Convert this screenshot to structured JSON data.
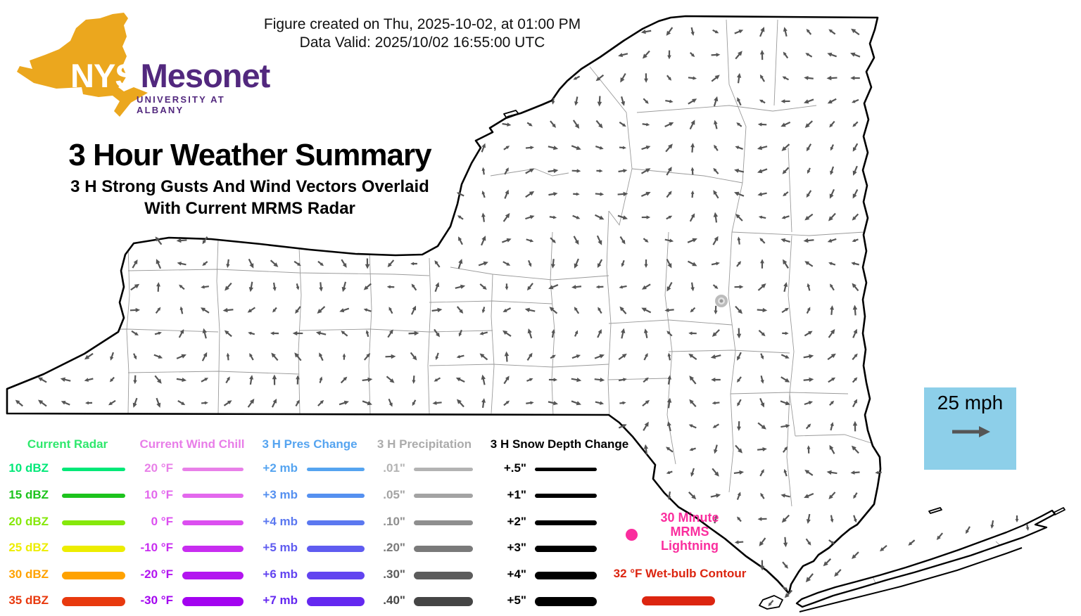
{
  "header": {
    "created_line": "Figure created on Thu, 2025-10-02, at 01:00 PM",
    "valid_line": "Data Valid: 2025/10/02 16:55:00 UTC"
  },
  "logo": {
    "nys": "NYS",
    "mesonet": "Mesonet",
    "tagline": "UNIVERSITY AT ALBANY",
    "state_color": "#EBA71E",
    "text_color": "#52287E"
  },
  "title": {
    "main": "3 Hour Weather Summary",
    "subtitle_line1": "3 H Strong Gusts And Wind Vectors Overlaid",
    "subtitle_line2": "With Current MRMS Radar"
  },
  "legend": {
    "columns": [
      {
        "header": "Current Radar",
        "header_color": "#2EE86C",
        "rows": [
          {
            "label": "10 dBZ",
            "color": "#00E878"
          },
          {
            "label": "15 dBZ",
            "color": "#1DC31D"
          },
          {
            "label": "20 dBZ",
            "color": "#86E80B"
          },
          {
            "label": "25 dBZ",
            "color": "#EDED00"
          },
          {
            "label": "30 dBZ",
            "color": "#FFA200"
          },
          {
            "label": "35 dBZ",
            "color": "#E8390E"
          }
        ]
      },
      {
        "header": "Current Wind Chill",
        "header_color": "#E87DE8",
        "rows": [
          {
            "label": "20 °F",
            "color": "#E880E8"
          },
          {
            "label": "10 °F",
            "color": "#E368ED"
          },
          {
            "label": "0 °F",
            "color": "#DC4FF0"
          },
          {
            "label": "-10 °F",
            "color": "#C82DF0"
          },
          {
            "label": "-20 °F",
            "color": "#B315F0"
          },
          {
            "label": "-30 °F",
            "color": "#A303F0"
          }
        ]
      },
      {
        "header": "3 H Pres Change",
        "header_color": "#55A4F0",
        "rows": [
          {
            "label": "+2 mb",
            "color": "#55A4F0"
          },
          {
            "label": "+3 mb",
            "color": "#5590F0"
          },
          {
            "label": "+4 mb",
            "color": "#5B78F0"
          },
          {
            "label": "+5 mb",
            "color": "#5F5CF0"
          },
          {
            "label": "+6 mb",
            "color": "#6244F0"
          },
          {
            "label": "+7 mb",
            "color": "#6428F0"
          }
        ]
      },
      {
        "header": "3 H Precipitation",
        "header_color": "#ABABAB",
        "rows": [
          {
            "label": ".01\"",
            "color": "#B3B3B3"
          },
          {
            "label": ".05\"",
            "color": "#A3A3A3"
          },
          {
            "label": ".10\"",
            "color": "#8F8F8F"
          },
          {
            "label": ".20\"",
            "color": "#7A7A7A"
          },
          {
            "label": ".30\"",
            "color": "#5C5C5C"
          },
          {
            "label": ".40\"",
            "color": "#454545"
          }
        ]
      },
      {
        "header": "3 H Snow Depth Change",
        "header_color": "#000000",
        "rows": [
          {
            "label": "+.5\"",
            "color": "#000000"
          },
          {
            "label": "+1\"",
            "color": "#000000"
          },
          {
            "label": "+2\"",
            "color": "#000000"
          },
          {
            "label": "+3\"",
            "color": "#000000"
          },
          {
            "label": "+4\"",
            "color": "#000000"
          },
          {
            "label": "+5\"",
            "color": "#000000"
          }
        ]
      }
    ]
  },
  "lightning": {
    "line1": "30 Minute",
    "line2": "MRMS",
    "line3": "Lightning",
    "color": "#FA2E9E"
  },
  "wetbulb": {
    "label": "32 °F Wet-bulb Contour",
    "color": "#DC2510"
  },
  "wind_reference": {
    "label": "25 mph",
    "box_color": "#8DCFE9",
    "arrow_color": "#555555"
  },
  "map": {
    "arrow_color": "#555555",
    "state_border_color": "#000000",
    "county_border_color": "#9A9A9A",
    "radar_blob_color": "#BCBCBC"
  }
}
